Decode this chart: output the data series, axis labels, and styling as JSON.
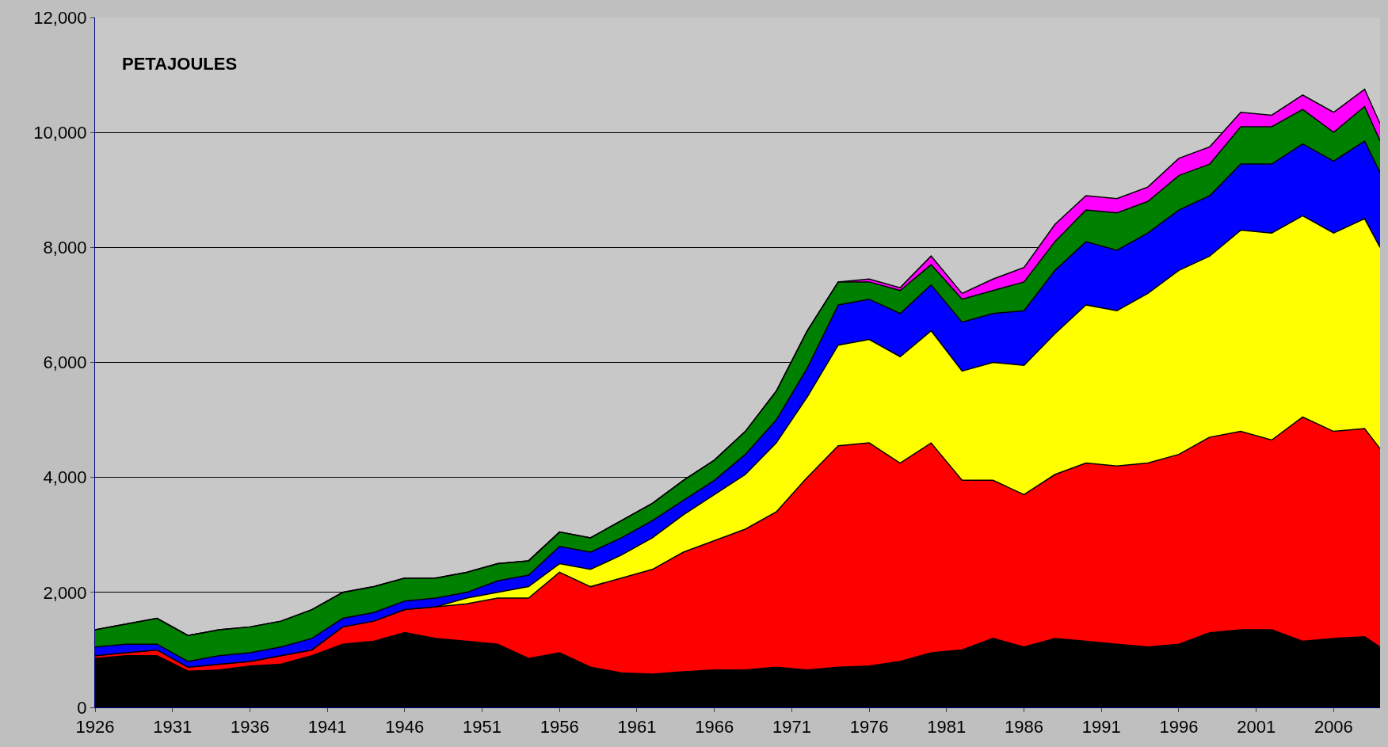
{
  "chart_data": {
    "type": "area",
    "stacked": true,
    "x": [
      1926,
      1928,
      1930,
      1932,
      1934,
      1936,
      1938,
      1940,
      1942,
      1944,
      1946,
      1948,
      1950,
      1952,
      1954,
      1956,
      1958,
      1960,
      1962,
      1964,
      1966,
      1968,
      1970,
      1972,
      1974,
      1976,
      1978,
      1980,
      1982,
      1984,
      1986,
      1988,
      1990,
      1992,
      1994,
      1996,
      1998,
      2000,
      2002,
      2004,
      2006,
      2008,
      2009
    ],
    "series": [
      {
        "color": "#000000",
        "values": [
          850,
          900,
          900,
          630,
          650,
          720,
          750,
          900,
          1100,
          1150,
          1300,
          1200,
          1150,
          1100,
          850,
          950,
          700,
          600,
          580,
          620,
          650,
          650,
          700,
          650,
          700,
          720,
          800,
          950,
          1000,
          1200,
          1050,
          1200,
          1150,
          1100,
          1050,
          1100,
          1300,
          1350,
          1350,
          1150,
          1200,
          1230,
          1050
        ]
      },
      {
        "color": "#ff0000",
        "values": [
          50,
          50,
          100,
          70,
          100,
          80,
          150,
          100,
          300,
          350,
          400,
          550,
          650,
          800,
          1050,
          1400,
          1400,
          1650,
          1820,
          2080,
          2250,
          2450,
          2700,
          3350,
          3850,
          3880,
          3450,
          3650,
          2950,
          2750,
          2650,
          2850,
          3100,
          3100,
          3200,
          3300,
          3400,
          3450,
          3300,
          3900,
          3600,
          3620,
          3450
        ]
      },
      {
        "color": "#ffff00",
        "values": [
          0,
          0,
          0,
          0,
          0,
          0,
          0,
          0,
          0,
          0,
          0,
          0,
          100,
          100,
          200,
          150,
          300,
          400,
          550,
          650,
          800,
          950,
          1200,
          1400,
          1750,
          1800,
          1850,
          1950,
          1900,
          2050,
          2250,
          2450,
          2750,
          2700,
          2950,
          3200,
          3150,
          3500,
          3600,
          3500,
          3450,
          3650,
          3500
        ]
      },
      {
        "color": "#0000ff",
        "values": [
          150,
          150,
          100,
          100,
          150,
          150,
          150,
          200,
          150,
          150,
          150,
          150,
          100,
          200,
          200,
          300,
          300,
          300,
          300,
          250,
          250,
          350,
          400,
          500,
          700,
          700,
          750,
          800,
          850,
          850,
          950,
          1100,
          1100,
          1050,
          1050,
          1050,
          1050,
          1150,
          1200,
          1250,
          1250,
          1350,
          1300
        ]
      },
      {
        "color": "#008000",
        "values": [
          300,
          350,
          450,
          450,
          450,
          450,
          450,
          500,
          450,
          450,
          400,
          350,
          350,
          300,
          250,
          250,
          250,
          300,
          300,
          350,
          350,
          400,
          500,
          650,
          400,
          300,
          400,
          350,
          400,
          400,
          500,
          500,
          550,
          650,
          550,
          600,
          550,
          650,
          650,
          600,
          500,
          600,
          550
        ]
      },
      {
        "color": "#ff00ff",
        "values": [
          0,
          0,
          0,
          0,
          0,
          0,
          0,
          0,
          0,
          0,
          0,
          0,
          0,
          0,
          0,
          0,
          0,
          0,
          0,
          0,
          0,
          0,
          0,
          0,
          0,
          50,
          50,
          150,
          100,
          200,
          250,
          300,
          250,
          250,
          250,
          300,
          300,
          250,
          200,
          250,
          350,
          300,
          300
        ]
      }
    ],
    "xlim": [
      1926,
      2009
    ],
    "xticks": [
      1926,
      1931,
      1936,
      1941,
      1946,
      1951,
      1956,
      1961,
      1966,
      1971,
      1976,
      1981,
      1986,
      1991,
      1996,
      2001,
      2006
    ],
    "ylim": [
      0,
      12000
    ],
    "yticks": [
      0,
      {
        "value": 2000,
        "label": "2,000"
      },
      {
        "value": 4000,
        "label": "4,000"
      },
      {
        "value": 6000,
        "label": "6,000"
      },
      {
        "value": 8000,
        "label": "8,000"
      },
      {
        "value": 10000,
        "label": "10,000"
      },
      {
        "value": 12000,
        "label": "12,000"
      }
    ],
    "grid": "y",
    "annotations": [
      "PETAJOULES"
    ]
  }
}
